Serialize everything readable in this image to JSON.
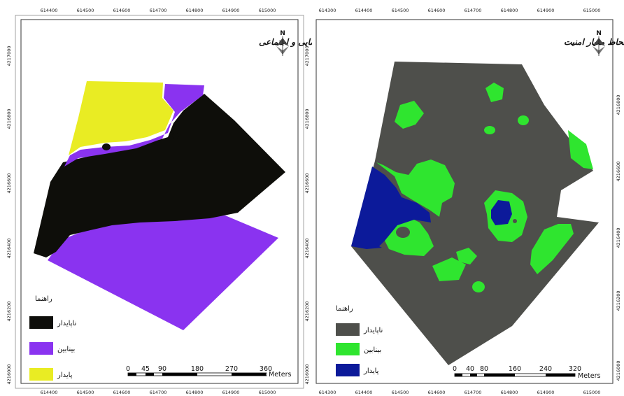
{
  "colors": {
    "unstable_left": "#0e0e0a",
    "intermediate_left": "#8a33f0",
    "stable_left": "#e9ec23",
    "unstable_right": "#4e4f4b",
    "intermediate_right": "#2fe52f",
    "stable_right": "#0c1a9a"
  },
  "left_map": {
    "title": "پهنه بندی محله سرخاب به لحاظ معیار عدالت فضایی و اجتماعی",
    "north_label": "N",
    "x_ticks": [
      "614400",
      "614500",
      "614600",
      "614700",
      "614800",
      "614900",
      "615000"
    ],
    "y_ticks_left": [
      "4217000",
      "4216800",
      "4216600",
      "4216400",
      "4216200",
      "4216000"
    ],
    "y_ticks_right": [
      "4217000",
      "4216800",
      "4216600",
      "4216400",
      "4216200",
      "4216000"
    ],
    "legend": {
      "title": "راهنما",
      "items": [
        {
          "label": "ناپایدار",
          "color": "#0e0e0a"
        },
        {
          "label": "بینابین",
          "color": "#8a33f0"
        },
        {
          "label": "پایدار",
          "color": "#e9ec23"
        }
      ]
    },
    "scale": {
      "labels": [
        "0",
        "45",
        "90",
        "180",
        "270",
        "360"
      ],
      "unit": "Meters"
    }
  },
  "right_map": {
    "title": "پهنه بندی محله سرخاب به لحاظ معیار امنیت",
    "north_label": "N",
    "x_ticks": [
      "614300",
      "614400",
      "614500",
      "614600",
      "614700",
      "614800",
      "614900",
      "615000"
    ],
    "y_ticks_right": [
      "4216800",
      "4216600",
      "4216400",
      "4216200",
      "4216000"
    ],
    "legend": {
      "title": "راهنما",
      "items": [
        {
          "label": "ناپایدار",
          "color": "#4e4f4b"
        },
        {
          "label": "بینابین",
          "color": "#2fe52f"
        },
        {
          "label": "پایدار",
          "color": "#0c1a9a"
        }
      ]
    },
    "scale": {
      "labels": [
        "0",
        "40",
        "80",
        "160",
        "240",
        "320"
      ],
      "unit": "Meters"
    }
  }
}
